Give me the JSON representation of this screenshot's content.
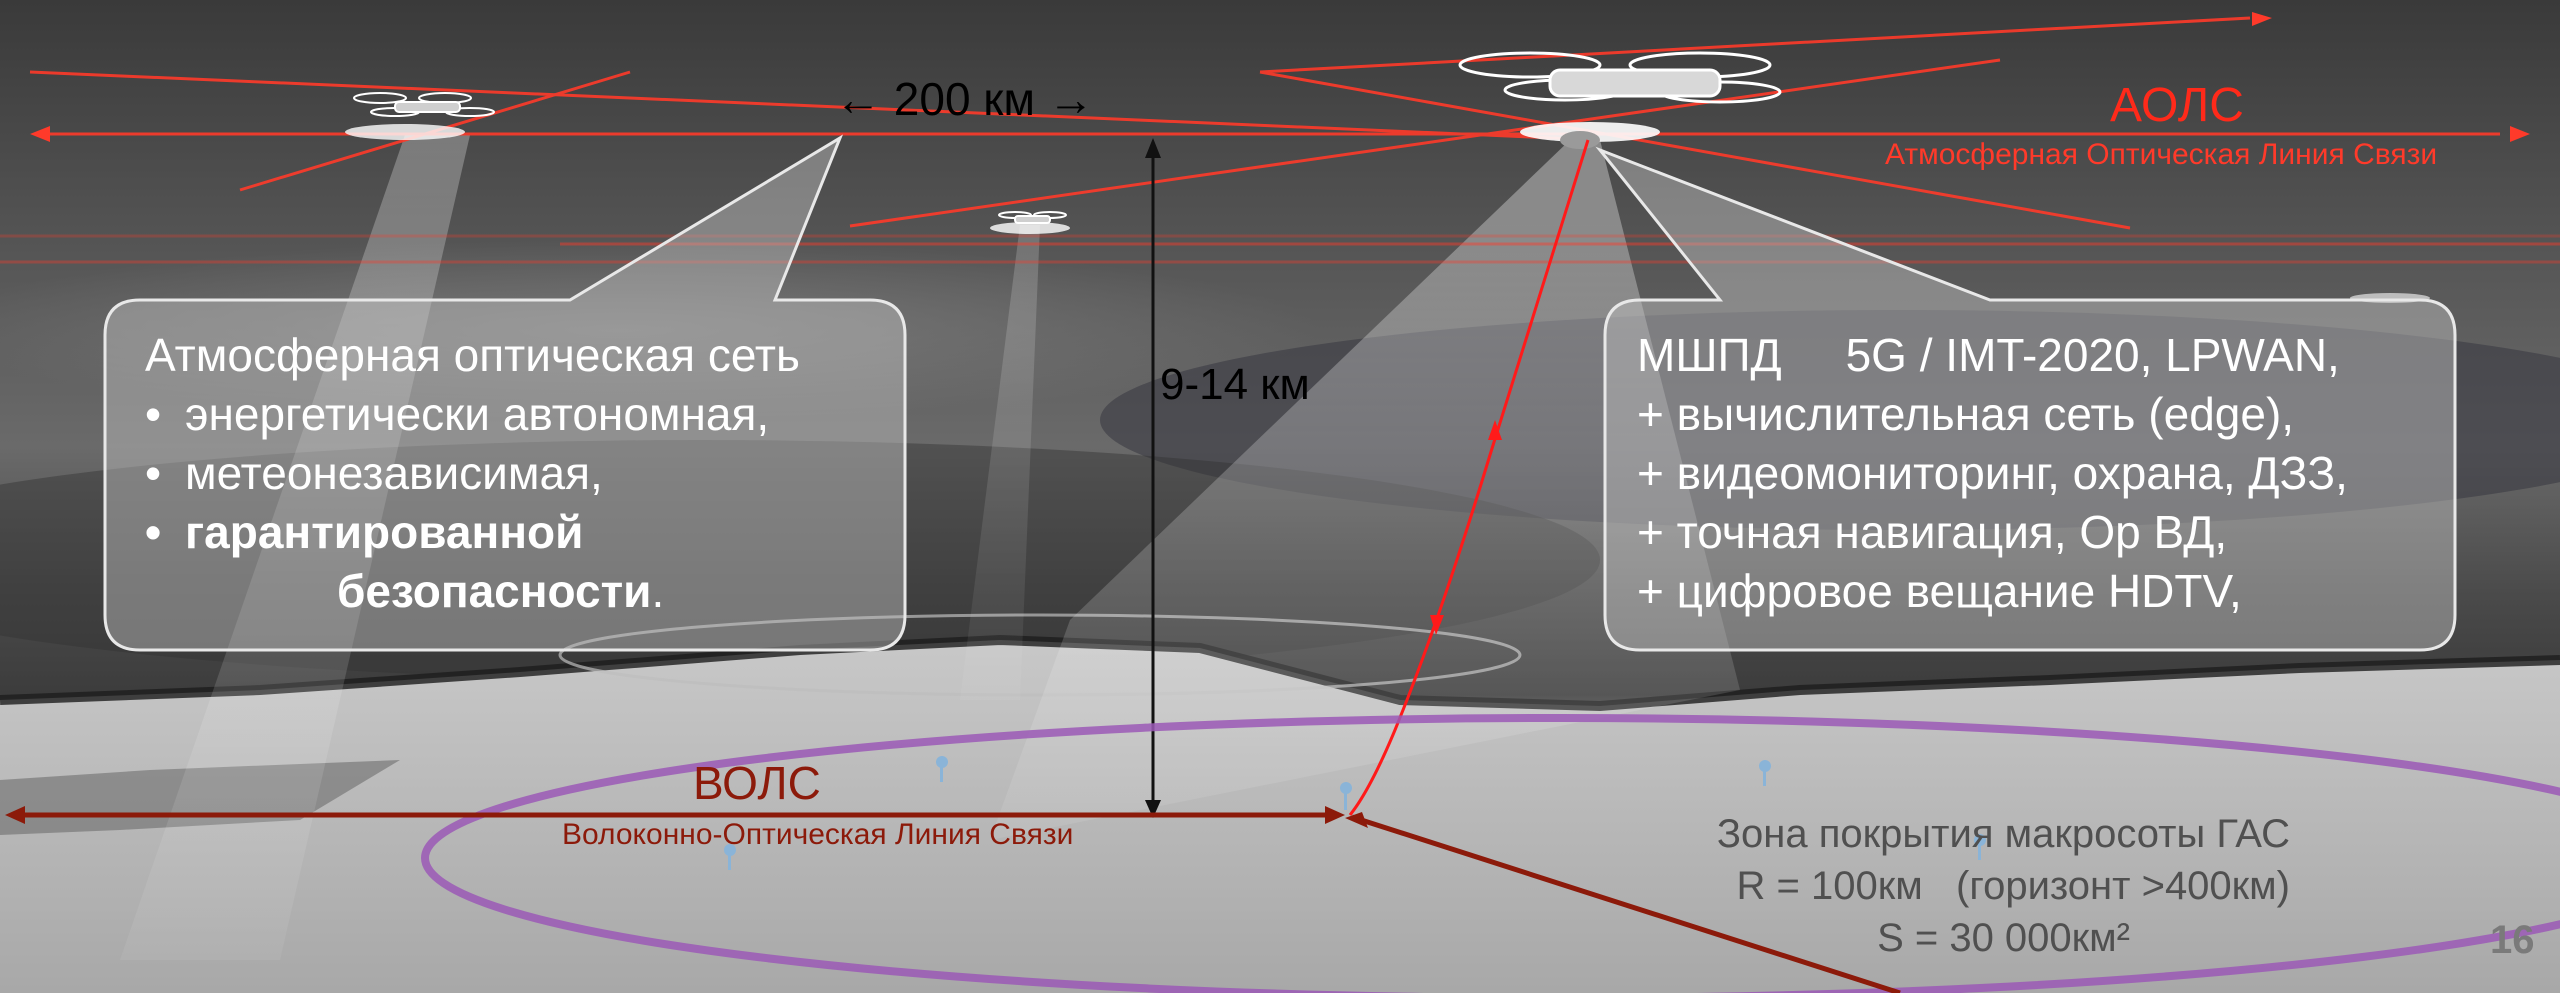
{
  "distance_label": "← 200 км →",
  "height_label": "9-14 км",
  "aols": {
    "abbr": "АОЛС",
    "full": "Атмосферная Оптическая Линия Связи"
  },
  "vols": {
    "abbr": "ВОЛС",
    "full": "Волоконно-Оптическая Линия Связи"
  },
  "left_callout": {
    "title": "Атмосферная оптическая сеть",
    "items": [
      "энергетически автономная,",
      "метеонезависимая,"
    ],
    "bold_item_1": "гарантированной",
    "bold_item_2": "безопасности",
    "bold_suffix": "."
  },
  "right_callout": {
    "lines": [
      "МШПД     5G / IMT-2020, LPWAN,",
      "+ вычислительная сеть (edge),",
      "+ видеомониторинг, охрана, ДЗЗ,",
      "+ точная навигация, Ор ВД,",
      "+ цифровое вещание HDTV,"
    ]
  },
  "coverage": {
    "title": "Зона покрытия макросоты ГАС",
    "radius": "R = 100км   (горизонт >400км)",
    "area": "S = 30 000км²"
  },
  "page_number": "16",
  "colors": {
    "aols_red": "#ff2a1a",
    "vols_dark_red": "#8c1a0a",
    "coverage_purple": "#9b59b6"
  }
}
